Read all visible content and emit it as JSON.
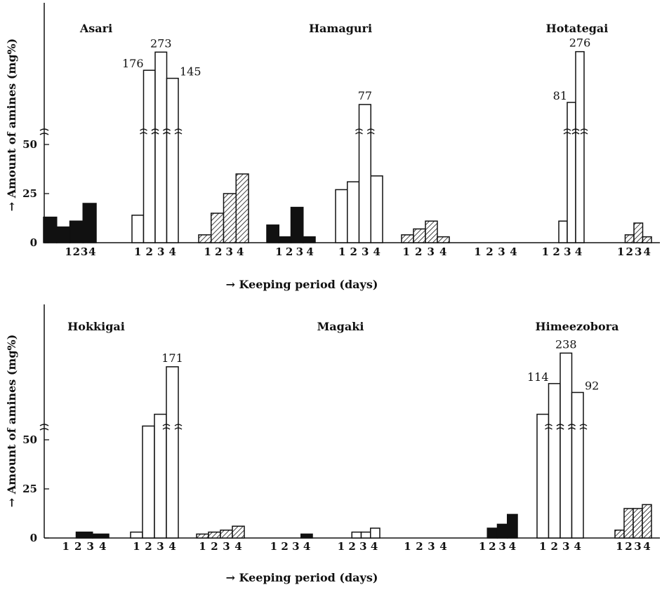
{
  "chart_data": [
    {
      "type": "bar",
      "subtype": "stepped grouped histogram",
      "ylabel": "Amount of amines (mg%)",
      "xlabel": "Keeping period (days)",
      "axis_arrow": "→",
      "ylim": [
        0,
        65
      ],
      "yticks": [
        0,
        25,
        50
      ],
      "axis_break": true,
      "days": [
        "1",
        "2",
        "3",
        "4"
      ],
      "series_styles": [
        {
          "fill": "solid",
          "color": "#111111"
        },
        {
          "fill": "open",
          "color": "#ffffff"
        },
        {
          "fill": "hatched",
          "color": "#111111"
        }
      ],
      "species": [
        {
          "name": "Asari",
          "groups": [
            {
              "style": 0,
              "values": [
                13,
                8,
                11,
                20
              ]
            },
            {
              "style": 1,
              "values": [
                14,
                176,
                273,
                145
              ],
              "labels": [
                "",
                "176",
                "273",
                "145"
              ]
            },
            {
              "style": 2,
              "values": [
                4,
                15,
                25,
                35
              ]
            }
          ]
        },
        {
          "name": "Hamaguri",
          "groups": [
            {
              "style": 0,
              "values": [
                9,
                3,
                18,
                3
              ]
            },
            {
              "style": 1,
              "values": [
                27,
                31,
                77,
                34
              ],
              "labels": [
                "",
                "",
                "77",
                ""
              ]
            },
            {
              "style": 2,
              "values": [
                4,
                7,
                11,
                3
              ]
            }
          ]
        },
        {
          "name": "Hotategai",
          "groups": [
            {
              "style": 0,
              "values": [
                0,
                0,
                0,
                0
              ]
            },
            {
              "style": 1,
              "values": [
                0,
                11,
                81,
                276
              ],
              "labels": [
                "",
                "",
                "81",
                "276"
              ]
            },
            {
              "style": 2,
              "values": [
                0,
                4,
                10,
                3
              ]
            }
          ]
        }
      ]
    },
    {
      "type": "bar",
      "subtype": "stepped grouped histogram",
      "ylabel": "Amount of amines (mg%)",
      "xlabel": "Keeping period (days)",
      "axis_arrow": "→",
      "ylim": [
        0,
        65
      ],
      "yticks": [
        0,
        25,
        50
      ],
      "axis_break": true,
      "days": [
        "1",
        "2",
        "3",
        "4"
      ],
      "series_styles": [
        {
          "fill": "solid",
          "color": "#111111"
        },
        {
          "fill": "open",
          "color": "#ffffff"
        },
        {
          "fill": "hatched",
          "color": "#111111"
        }
      ],
      "species": [
        {
          "name": "Hokkigai",
          "groups": [
            {
              "style": 0,
              "values": [
                0,
                0,
                3,
                2
              ]
            },
            {
              "style": 1,
              "values": [
                3,
                57,
                63,
                171
              ],
              "labels": [
                "",
                "",
                "",
                "171"
              ]
            },
            {
              "style": 2,
              "values": [
                2,
                3,
                4,
                6
              ]
            }
          ]
        },
        {
          "name": "Magaki",
          "groups": [
            {
              "style": 0,
              "values": [
                0,
                0,
                0,
                2
              ]
            },
            {
              "style": 1,
              "values": [
                0,
                3,
                3,
                5
              ],
              "labels": [
                "",
                "",
                "",
                ""
              ]
            },
            {
              "style": 2,
              "values": [
                0,
                0,
                0,
                0
              ]
            }
          ]
        },
        {
          "name": "Himeezobora",
          "groups": [
            {
              "style": 0,
              "values": [
                0,
                5,
                7,
                12
              ]
            },
            {
              "style": 1,
              "values": [
                63,
                114,
                238,
                92
              ],
              "labels": [
                "",
                "114",
                "238",
                "92"
              ]
            },
            {
              "style": 2,
              "values": [
                4,
                15,
                15,
                17
              ]
            }
          ]
        }
      ]
    }
  ]
}
